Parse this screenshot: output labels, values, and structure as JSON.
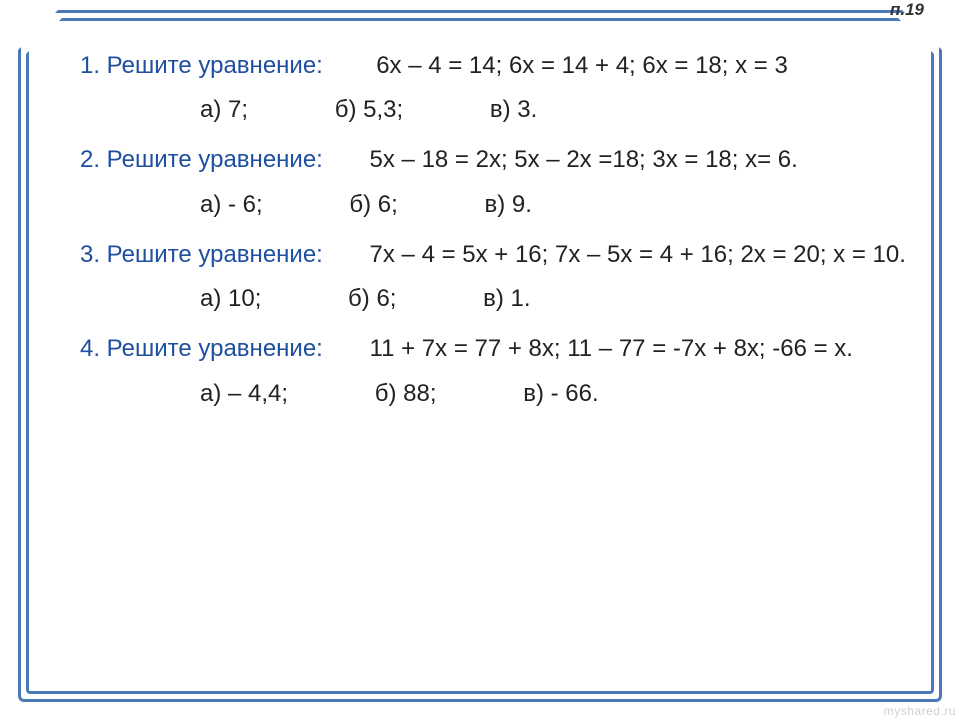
{
  "page_label": "п.19",
  "title_color": "#1f4fa0",
  "body_color": "#222222",
  "frame_color": "#4a7bb8",
  "font_size_body": 24,
  "font_size_pagelabel": 17,
  "background_color": "#ffffff",
  "problems": [
    {
      "title": "1. Решите уравнение:",
      "work": "6х – 4 = 14; 6х = 14 + 4; 6х = 18; х = 3",
      "options": {
        "a": "а) 7;",
        "b": "б) 5,3;",
        "c": "в) 3."
      }
    },
    {
      "title": "2. Решите уравнение:",
      "work": "5х – 18 = 2х; 5х – 2х =18; 3х = 18; х= 6.",
      "options": {
        "a": "а) - 6;",
        "b": "б) 6;",
        "c": "в) 9."
      }
    },
    {
      "title": "3. Решите уравнение:",
      "work": "7х – 4 = 5х + 16; 7х – 5х = 4 + 16; 2х = 20; х = 10.",
      "options": {
        "a": "а) 10;",
        "b": "б) 6;",
        "c": "в) 1."
      }
    },
    {
      "title": "4. Решите уравнение:",
      "work": "11 + 7х = 77 + 8х; 11 – 77 = -7х + 8х; -66 = х.",
      "options": {
        "a": "а) – 4,4;",
        "b": "б) 88;",
        "c": "в) - 66."
      }
    }
  ],
  "watermark": "myshared.ru"
}
